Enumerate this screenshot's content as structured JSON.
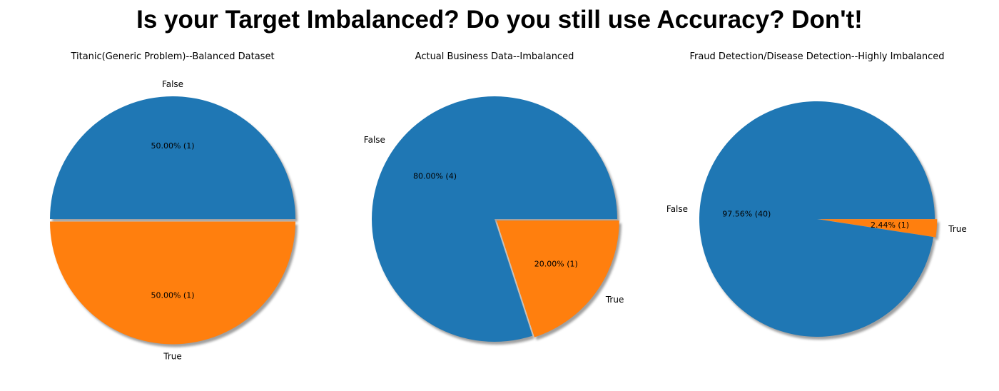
{
  "figure": {
    "title": "Is your Target Imbalanced? Do you still use Accuracy? Don't!"
  },
  "colors": {
    "false": "#1f77b4",
    "true": "#ff7f0e",
    "shadow": "#808080"
  },
  "chart_data": [
    {
      "type": "pie",
      "title": "Titanic(Generic Problem)--Balanced Dataset",
      "slices": [
        {
          "label": "False",
          "value": 1,
          "percent_label": "50.00%  (1)",
          "color": "#1f77b4",
          "exploded": false
        },
        {
          "label": "True",
          "value": 1,
          "percent_label": "50.00%  (1)",
          "color": "#ff7f0e",
          "exploded": true
        }
      ],
      "shadow": true,
      "start_angle_degrees": 0
    },
    {
      "type": "pie",
      "title": "Actual Business Data--Imbalanced",
      "slices": [
        {
          "label": "False",
          "value": 4,
          "percent_label": "80.00%  (4)",
          "color": "#1f77b4",
          "exploded": false
        },
        {
          "label": "True",
          "value": 1,
          "percent_label": "20.00%  (1)",
          "color": "#ff7f0e",
          "exploded": true
        }
      ],
      "shadow": true,
      "start_angle_degrees": 0
    },
    {
      "type": "pie",
      "title": "Fraud Detection/Disease Detection--Highly Imbalanced",
      "slices": [
        {
          "label": "False",
          "value": 40,
          "percent_label": "97.56%  (40)",
          "color": "#1f77b4",
          "exploded": false
        },
        {
          "label": "True",
          "value": 1,
          "percent_label": "2.44%  (1)",
          "color": "#ff7f0e",
          "exploded": true
        }
      ],
      "shadow": true,
      "start_angle_degrees": 0
    }
  ]
}
